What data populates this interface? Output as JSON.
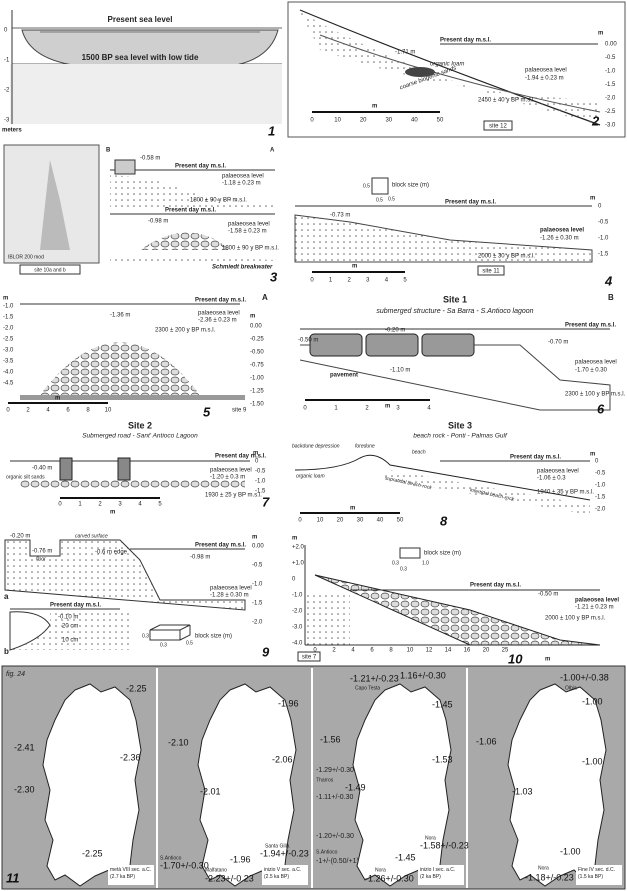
{
  "panels": {
    "p1": {
      "number": "1",
      "present": "Present sea level",
      "ancient": "1500 BP sea level with low tide",
      "axis": [
        "0",
        "-1",
        "-2",
        "-3"
      ],
      "unit": "meters"
    },
    "p2": {
      "number": "2",
      "msl": "Present day m.s.l.",
      "unit": "m",
      "axis": [
        "0.00",
        "-0.5",
        "-1.0",
        "-1.5",
        "-2.0",
        "-2.5",
        "-3.0"
      ],
      "depth": "-1.71 m",
      "palaeo": "palaeosea level",
      "palaeo_value": "-1.94 ± 0.23 m",
      "loam": "organic loam",
      "sands": "coarse biogenic sands",
      "date": "2450 ± 40 y BP m.s.l.",
      "scale_unit": "m",
      "scale": [
        "0",
        "10",
        "20",
        "30",
        "40",
        "50"
      ],
      "site": "site 12"
    },
    "p3": {
      "number": "3",
      "site": "site 10a and b",
      "source": "IBLOR 200 mod",
      "left": "B",
      "right": "A",
      "msl_a": "Present day m.s.l.",
      "depth_a": "-0.58 m",
      "palaeo_a": "palaeosea level",
      "palaeo_value_a": "-1.18 ± 0.23 m",
      "date_a": "1800 ± 90 y BP m.s.l.",
      "msl_b": "Present day m.s.l.",
      "depth_b": "-0.98 m",
      "palaeo_b": "palaeosea level",
      "palaeo_value_b": "-1.58 ± 0.23 m",
      "date_b": "1800 ± 90 y BP m.s.l.",
      "breakwater": "Schmiedt breakwater"
    },
    "p4": {
      "number": "4",
      "block": "block size (m)",
      "block_dims": [
        "0.5",
        "0.5",
        "0.5"
      ],
      "msl": "Present day m.s.l.",
      "unit": "m",
      "axis": [
        "0",
        "-0.5",
        "-1.0",
        "-1.5"
      ],
      "depth": "-0.73 m",
      "palaeo": "palaeosea level",
      "palaeo_value": "-1.26 ± 0.30 m",
      "date": "2000 ± 30 y BP m.s.l.",
      "scale_unit": "m",
      "scale": [
        "0",
        "1",
        "2",
        "3",
        "4",
        "5"
      ],
      "site": "site 11"
    },
    "p5": {
      "number": "5",
      "corner": "A",
      "msl": "Present day m.s.l.",
      "depth": "-1.36 m",
      "palaeo": "palaeosea level",
      "palaeo_value": "-2.36 ± 0.23 m",
      "date": "2300 ± 200 y BP m.s.l.",
      "unit_left": "m",
      "axis_left": [
        "-1.0",
        "-1.5",
        "-2.0",
        "-2.5",
        "-3.0",
        "-3.5",
        "-4.0",
        "-4.5"
      ],
      "unit": "m",
      "axis": [
        "0.00",
        "-0.25",
        "-0.50",
        "-0.75",
        "-1.00",
        "-1.25",
        "-1.50"
      ],
      "scale_unit": "m",
      "scale": [
        "0",
        "2",
        "4",
        "6",
        "8",
        "10"
      ],
      "site": "site 9"
    },
    "p6": {
      "number": "6",
      "title": "Site 1",
      "subtitle": "submerged structure - Sa Barra - S.Antioco lagoon",
      "corner": "B",
      "msl": "Present day m.s.l.",
      "depth_left": "-0.50 m",
      "depth_top": "-0.20 m",
      "depth_right": "-0.70 m",
      "palaeo": "palaeosea level",
      "palaeo_value": "-1.70 ± 0.30",
      "pavement": "pavement",
      "depth_floor": "-1.10 m",
      "date": "2300 ± 100 y BP m.s.l.",
      "scale_unit": "m",
      "scale": [
        "0",
        "1",
        "2",
        "3",
        "4"
      ]
    },
    "p7": {
      "number": "7",
      "title": "Site 2",
      "subtitle": "Submerged road - Sant' Antioco Lagoon",
      "msl": "Present day m.s.l.",
      "depth": "-0.40 m",
      "silt": "organic silt sands",
      "palaeo": "palaeosea level",
      "palaeo_value": "-1.20 ± 0.3 m",
      "date": "1930 ± 25 y BP m.s.l.",
      "unit": "m",
      "axis": [
        "0",
        "-0.5",
        "-1.0",
        "-1.5"
      ],
      "scale_unit": "m",
      "scale": [
        "0",
        "1",
        "2",
        "3",
        "4",
        "5"
      ]
    },
    "p8": {
      "number": "8",
      "title": "Site 3",
      "subtitle": "beach rock - Ponti - Palmas Gulf",
      "backdune": "backdune depression",
      "foredune": "foredune",
      "beach": "beach",
      "loam": "organic loam",
      "supratidal": "supratidal beach-rock",
      "intertidal": "intertidal beach-rock",
      "msl": "Present day m.s.l.",
      "unit": "m",
      "axis": [
        "0",
        "-0.5",
        "-1.0",
        "-1.5",
        "-2.0"
      ],
      "palaeo": "palaeosea level",
      "palaeo_value": "-1.06 ± 0.3",
      "date": "1940 ± 35 y BP m.s.l.",
      "scale_unit": "m",
      "scale": [
        "0",
        "10",
        "20",
        "30",
        "40",
        "50"
      ]
    },
    "p9": {
      "number": "9",
      "depth_top": "-0.20 m",
      "carved": "carved surface",
      "depth_floor": "-0.76 m",
      "floor": "floor",
      "edge": "-0.6 m edge",
      "msl": "Present day m.s.l.",
      "depth": "-0.98 m",
      "palaeo": "palaeosea level",
      "palaeo_value": "-1.28 ± 0.30 m",
      "label_a": "a",
      "msl_b": "Present day m.s.l.",
      "depth_b": "-0.10 m",
      "cm20": "20 cm",
      "cm10": "10 cm",
      "label_b": "b",
      "block": "block size (m)",
      "block_dims": [
        "0.3",
        "0.3",
        "0.5"
      ],
      "unit": "m",
      "axis": [
        "0.00",
        "-0.5",
        "-1.0",
        "-1.5",
        "-2.0"
      ]
    },
    "p10": {
      "number": "10",
      "unit": "m",
      "axis": [
        "+2.0",
        "+1.0",
        "0",
        "-1.0",
        "-2.0",
        "-3.0",
        "-4.0"
      ],
      "block": "block size (m)",
      "block_dims": [
        "0.3",
        "0.3",
        "1.0"
      ],
      "msl": "Present day m.s.l.",
      "depth": "-0.50 m",
      "palaeo": "palaeosea level",
      "palaeo_value": "-1.21 ± 0.23 m",
      "date": "2000 ± 100 y BP m.s.l.",
      "xaxis": [
        "0",
        "2",
        "4",
        "6",
        "8",
        "10",
        "12",
        "14",
        "16",
        "20",
        "25"
      ],
      "x_unit": "m",
      "site": "site 7"
    },
    "p11": {
      "number": "11",
      "fig": "fig. 24",
      "map1": {
        "labels": [
          "-2.25",
          "-2.41",
          "-2.36",
          "-2.30",
          "-2.25"
        ],
        "caption": "metà VIII sec. a.C. (2.7 ka BP)"
      },
      "map2": {
        "labels": [
          "-1.96",
          "-2.10",
          "-2.06",
          "-2.01",
          "S.Antioco",
          "-1.70+/-0.30",
          "-1.96",
          "Santa Gilla",
          "-1.94+/-0.23",
          "Malfatano",
          "-2.23+/-0.23"
        ],
        "caption": "inizio V sec. a.C. (2.5 ka BP)"
      },
      "map3": {
        "labels": [
          "-1.21+/-0.23",
          "Capo Testa",
          "1.16+/-0.30",
          "-1.45",
          "-1.56",
          "-1.53",
          "-1.29+/-0.30",
          "Tharros",
          "-1.49",
          "-1.11+/-0.30",
          "-1.20+/-0.30",
          "S.Antioco",
          "-1+/-(0.50/+1)",
          "-1.45",
          "Nora",
          "Nora",
          "-1.58+/-0.23",
          "-1.26+/-0.30"
        ],
        "caption": "inizio I sec. a.C. (2 ka BP)"
      },
      "map4": {
        "labels": [
          "-1.00+/-0.38",
          "Olbia",
          "-1.00",
          "-1.06",
          "-1.00",
          "-1.03",
          "-1.00",
          "Nora",
          "-1.18+/-0.23"
        ],
        "caption": "Fine IV sec. d.C. (1.5 ka BP)"
      }
    }
  }
}
